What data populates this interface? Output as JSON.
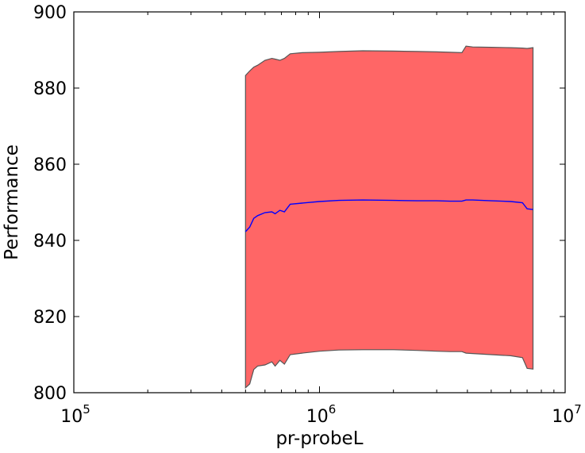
{
  "chart_data": {
    "type": "area",
    "title": "",
    "xlabel": "pr-probeL",
    "ylabel": "Performance",
    "xscale": "log",
    "xlim": [
      100000,
      10000000
    ],
    "ylim": [
      800,
      900
    ],
    "x_ticks": [
      {
        "value": 100000,
        "base": "10",
        "exp": "5"
      },
      {
        "value": 1000000,
        "base": "10",
        "exp": "6"
      },
      {
        "value": 10000000,
        "base": "10",
        "exp": "7"
      }
    ],
    "y_ticks": [
      800,
      820,
      840,
      860,
      880,
      900
    ],
    "grid": false,
    "band_color": "#ff6666",
    "band_edge_color": "#555555",
    "line_color": "#0000ff",
    "series": [
      {
        "x": [
          500000,
          520000,
          540000,
          560000,
          600000,
          640000,
          660000,
          690000,
          720000,
          760000,
          850000,
          1000000,
          1200000,
          1500000,
          2000000,
          2500000,
          3000000,
          3400000,
          3800000,
          3950000,
          4200000,
          5000000,
          6000000,
          6700000,
          7000000,
          7400000
        ],
        "mean": [
          842.3,
          843.5,
          845.8,
          846.5,
          847.3,
          847.5,
          847.0,
          847.9,
          847.5,
          849.5,
          849.8,
          850.2,
          850.5,
          850.6,
          850.5,
          850.4,
          850.4,
          850.3,
          850.3,
          850.6,
          850.6,
          850.4,
          850.2,
          849.9,
          848.3,
          848.1
        ],
        "upper": [
          883.3,
          884.5,
          885.5,
          886.0,
          887.3,
          887.8,
          887.6,
          887.3,
          887.8,
          889.0,
          889.3,
          889.4,
          889.6,
          889.8,
          889.7,
          889.6,
          889.5,
          889.4,
          889.3,
          891.0,
          890.8,
          890.7,
          890.6,
          890.5,
          890.4,
          890.6
        ],
        "lower": [
          801.3,
          802.3,
          806.1,
          807.0,
          807.3,
          808.1,
          807.0,
          808.5,
          807.5,
          810.0,
          810.4,
          810.9,
          811.2,
          811.3,
          811.3,
          811.1,
          810.9,
          810.8,
          810.8,
          810.4,
          810.3,
          810.0,
          809.7,
          809.2,
          806.4,
          806.2
        ]
      }
    ]
  }
}
